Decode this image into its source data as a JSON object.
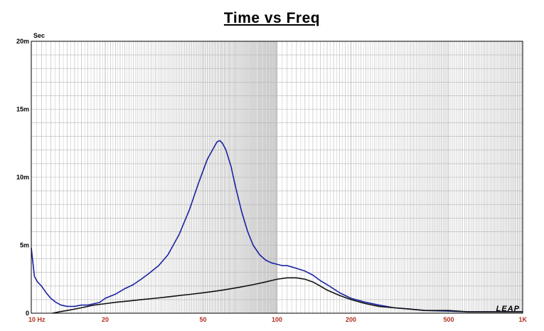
{
  "chart_data": {
    "type": "line",
    "title": "Time vs Freq",
    "ylabel": "Sec",
    "xscale": "log",
    "xlim": [
      10,
      1000
    ],
    "ylim": [
      0,
      0.02
    ],
    "grid": true,
    "x_tick_labels": [
      "10 Hz",
      "20",
      "50",
      "100",
      "200",
      "500",
      "1K"
    ],
    "x_tick_values": [
      10,
      20,
      50,
      100,
      200,
      500,
      1000
    ],
    "y_tick_labels": [
      "0",
      "5m",
      "10m",
      "15m",
      "20m"
    ],
    "y_tick_values": [
      0,
      0.005,
      0.01,
      0.015,
      0.02
    ],
    "watermark": "LEAP",
    "colors": {
      "blue": "#1a22a0",
      "black": "#111111",
      "grid": "#b4b4b4",
      "axis_label": "#b03020"
    },
    "series": [
      {
        "color": "#1a22a0",
        "x": [
          10,
          10.3,
          10.6,
          11,
          11.5,
          12,
          12.6,
          13.2,
          14,
          15,
          16,
          17,
          18,
          19,
          20,
          22,
          24,
          26,
          28,
          30,
          33,
          36,
          40,
          44,
          48,
          52,
          55,
          57,
          58.5,
          60,
          62,
          65,
          68,
          72,
          76,
          80,
          85,
          90,
          95,
          100,
          105,
          110,
          115,
          120,
          130,
          140,
          150,
          160,
          180,
          200,
          230,
          260,
          300,
          350,
          400,
          500,
          600,
          700,
          800,
          1000
        ],
        "y": [
          0.0048,
          0.0027,
          0.0023,
          0.002,
          0.0015,
          0.0011,
          0.0008,
          0.0006,
          0.0005,
          0.0005,
          0.0006,
          0.0006,
          0.0007,
          0.0008,
          0.0011,
          0.0014,
          0.0018,
          0.0021,
          0.0025,
          0.0029,
          0.0035,
          0.0043,
          0.0058,
          0.0076,
          0.0096,
          0.0113,
          0.0121,
          0.0126,
          0.0127,
          0.0125,
          0.012,
          0.0108,
          0.0092,
          0.0074,
          0.006,
          0.005,
          0.0043,
          0.0039,
          0.0037,
          0.0036,
          0.0035,
          0.0035,
          0.0034,
          0.0033,
          0.0031,
          0.0028,
          0.0024,
          0.0021,
          0.0015,
          0.0011,
          0.0008,
          0.0006,
          0.0004,
          0.0003,
          0.0002,
          0.00015,
          0.0001,
          0.0001,
          0.0001,
          0.0001
        ]
      },
      {
        "color": "#111111",
        "x": [
          12.2,
          13,
          14,
          15,
          16,
          18,
          20,
          22,
          25,
          28,
          32,
          36,
          40,
          45,
          50,
          55,
          60,
          70,
          80,
          90,
          100,
          110,
          115,
          120,
          130,
          140,
          150,
          160,
          180,
          200,
          230,
          260,
          300,
          350,
          400,
          500,
          600,
          700,
          800,
          1000
        ],
        "y": [
          0,
          0.0001,
          0.0002,
          0.0003,
          0.0004,
          0.0006,
          0.0007,
          0.0008,
          0.0009,
          0.001,
          0.0011,
          0.0012,
          0.0013,
          0.0014,
          0.0015,
          0.0016,
          0.0017,
          0.0019,
          0.0021,
          0.0023,
          0.0025,
          0.0026,
          0.0026,
          0.0026,
          0.0025,
          0.0023,
          0.002,
          0.0017,
          0.0013,
          0.001,
          0.0007,
          0.0005,
          0.0004,
          0.0003,
          0.0002,
          0.0002,
          0.0001,
          0.0001,
          0.0001,
          0.0001
        ]
      }
    ]
  }
}
